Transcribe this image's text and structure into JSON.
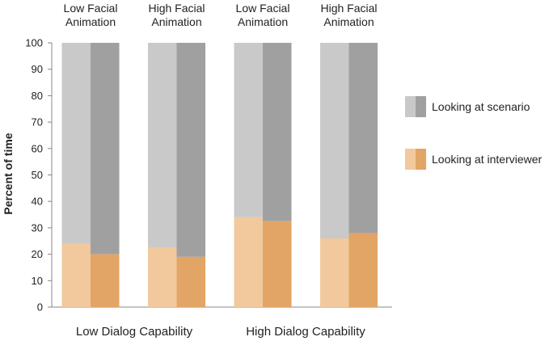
{
  "chart_data": {
    "type": "bar",
    "stacked": true,
    "ylabel": "Percent of time",
    "ylim": [
      0,
      100
    ],
    "yticks": [
      0,
      10,
      20,
      30,
      40,
      50,
      60,
      70,
      80,
      90,
      100
    ],
    "conditions": [
      {
        "label_line1": "Low Facial",
        "label_line2": "Animation",
        "group": "Low Dialog Capability",
        "bars": [
          {
            "interviewer": 24,
            "scenario": 76
          },
          {
            "interviewer": 20,
            "scenario": 80
          }
        ]
      },
      {
        "label_line1": "High Facial",
        "label_line2": "Animation",
        "group": "Low Dialog Capability",
        "bars": [
          {
            "interviewer": 22.5,
            "scenario": 77.5
          },
          {
            "interviewer": 19,
            "scenario": 81
          }
        ]
      },
      {
        "label_line1": "Low Facial",
        "label_line2": "Animation",
        "group": "High Dialog Capability",
        "bars": [
          {
            "interviewer": 34,
            "scenario": 66
          },
          {
            "interviewer": 32.5,
            "scenario": 67.5
          }
        ]
      },
      {
        "label_line1": "High Facial",
        "label_line2": "Animation",
        "group": "High Dialog Capability",
        "bars": [
          {
            "interviewer": 26,
            "scenario": 74
          },
          {
            "interviewer": 28,
            "scenario": 72
          }
        ]
      }
    ],
    "groups": [
      "Low Dialog Capability",
      "High Dialog Capability"
    ],
    "legend": [
      {
        "label": "Looking at scenario",
        "colors": [
          "#c9c9c9",
          "#a0a0a0"
        ]
      },
      {
        "label": "Looking at interviewer",
        "colors": [
          "#f1c99c",
          "#e2a565"
        ]
      }
    ],
    "colors": {
      "scenario_light": "#c9c9c9",
      "scenario_dark": "#a0a0a0",
      "interviewer_light": "#f1c99c",
      "interviewer_dark": "#e2a565",
      "axis": "#888888"
    }
  }
}
